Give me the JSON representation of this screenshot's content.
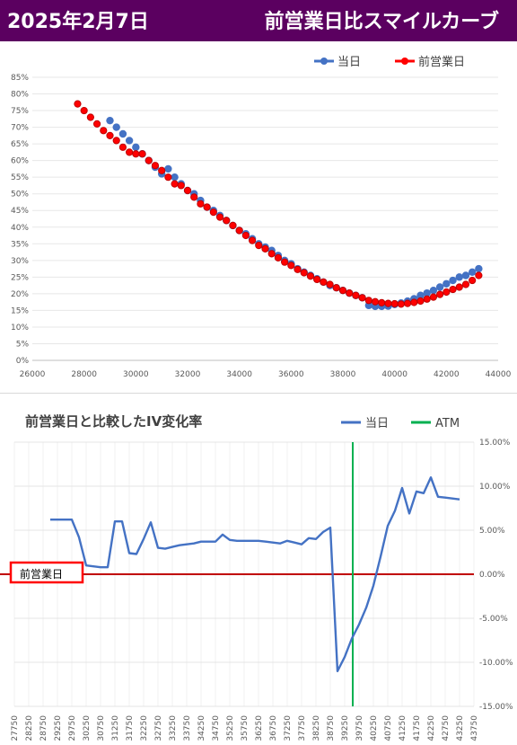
{
  "header": {
    "date": "2025年2月7日",
    "title": "前営業日比スマイルカーブ"
  },
  "colors": {
    "header_bg": "#5b0060",
    "today": "#4472c4",
    "prev": "#ff0000",
    "atm": "#00b050",
    "zero_line": "#c00000"
  },
  "chart_data": [
    {
      "type": "scatter",
      "title": "",
      "legend_position": "top-right",
      "xlim": [
        26000,
        44000
      ],
      "ylim": [
        0,
        85
      ],
      "x_ticks": [
        "26000",
        "28000",
        "30000",
        "32000",
        "34000",
        "36000",
        "38000",
        "40000",
        "42000",
        "44000"
      ],
      "y_ticks": [
        "0%",
        "5%",
        "10%",
        "15%",
        "20%",
        "25%",
        "30%",
        "35%",
        "40%",
        "45%",
        "50%",
        "55%",
        "60%",
        "65%",
        "70%",
        "75%",
        "80%",
        "85%"
      ],
      "series": [
        {
          "name": "当日",
          "color": "#4472c4",
          "x": [
            29000,
            29250,
            29500,
            29750,
            30000,
            30250,
            30500,
            30750,
            31000,
            31250,
            31500,
            31750,
            32000,
            32250,
            32500,
            32750,
            33000,
            33250,
            33500,
            33750,
            34000,
            34250,
            34500,
            34750,
            35000,
            35250,
            35500,
            35750,
            36000,
            36250,
            36500,
            36750,
            37000,
            37250,
            37500,
            37750,
            38000,
            38250,
            38500,
            38750,
            39000,
            39250,
            39500,
            39750,
            40000,
            40250,
            40500,
            40750,
            41000,
            41250,
            41500,
            41750,
            42000,
            42250,
            42500,
            42750,
            43000,
            43250
          ],
          "y": [
            72,
            70,
            68,
            66,
            64,
            62,
            60,
            58,
            56,
            57.5,
            55,
            53,
            51,
            50,
            48,
            46,
            45,
            43.5,
            42,
            40.5,
            39,
            38,
            36.5,
            35,
            34,
            33,
            31.5,
            30,
            29,
            27.5,
            26.5,
            25.5,
            24.5,
            23.5,
            22.5,
            21.8,
            21,
            20.2,
            19.5,
            18.8,
            16.5,
            16.2,
            16.2,
            16.3,
            16.8,
            17.2,
            17.8,
            18.5,
            19.5,
            20.2,
            21,
            22,
            23,
            24,
            25,
            25.5,
            26.5,
            27.5
          ]
        },
        {
          "name": "前営業日",
          "color": "#ff0000",
          "x": [
            27750,
            28000,
            28250,
            28500,
            28750,
            29000,
            29250,
            29500,
            29750,
            30000,
            30250,
            30500,
            30750,
            31000,
            31250,
            31500,
            31750,
            32000,
            32250,
            32500,
            32750,
            33000,
            33250,
            33500,
            33750,
            34000,
            34250,
            34500,
            34750,
            35000,
            35250,
            35500,
            35750,
            36000,
            36250,
            36500,
            36750,
            37000,
            37250,
            37500,
            37750,
            38000,
            38250,
            38500,
            38750,
            39000,
            39250,
            39500,
            39750,
            40000,
            40250,
            40500,
            40750,
            41000,
            41250,
            41500,
            41750,
            42000,
            42250,
            42500,
            42750,
            43000,
            43250
          ],
          "y": [
            77,
            75,
            73,
            71,
            69,
            67.5,
            66,
            64,
            62.5,
            62,
            62,
            60,
            58.5,
            57,
            55,
            53,
            52.5,
            51,
            49,
            47,
            46,
            44.5,
            43,
            42,
            40.5,
            39,
            37.5,
            36,
            34.5,
            33.5,
            32,
            30.8,
            29.5,
            28.5,
            27.3,
            26.3,
            25.3,
            24.3,
            23.5,
            22.8,
            21.8,
            21,
            20.2,
            19.5,
            18.8,
            18,
            17.6,
            17.3,
            17.1,
            17,
            16.9,
            17.1,
            17.4,
            17.8,
            18.4,
            19,
            19.8,
            20.5,
            21.3,
            22,
            22.8,
            24,
            25.5
          ]
        }
      ]
    },
    {
      "type": "line",
      "title": "前営業日と比較したIV変化率",
      "legend_position": "top-right",
      "ylim": [
        -15,
        15
      ],
      "y_ticks": [
        "15.00%",
        "10.00%",
        "5.00%",
        "0.00%",
        "-5.00%",
        "-10.00%",
        "-15.00%"
      ],
      "categories": [
        "27750",
        "28250",
        "28750",
        "29250",
        "29750",
        "30250",
        "30750",
        "31250",
        "31750",
        "32250",
        "32750",
        "33250",
        "33750",
        "34250",
        "34750",
        "35250",
        "35750",
        "36250",
        "36750",
        "37250",
        "37750",
        "38250",
        "38750",
        "39250",
        "39750",
        "40250",
        "40750",
        "41250",
        "41750",
        "42250",
        "42750",
        "43250",
        "43750"
      ],
      "atm_strike": 39250,
      "zero_label": "前営業日",
      "series": [
        {
          "name": "当日",
          "color": "#4472c4",
          "x": [
            29000,
            29250,
            29500,
            29750,
            30000,
            30250,
            30500,
            30750,
            31000,
            31250,
            31500,
            31750,
            32000,
            32250,
            32500,
            32750,
            33000,
            33250,
            33500,
            33750,
            34000,
            34250,
            34500,
            34750,
            35000,
            35250,
            35500,
            35750,
            36000,
            36250,
            36500,
            36750,
            37000,
            37250,
            37500,
            37750,
            38000,
            38250,
            38500,
            38750,
            39000,
            39250,
            39500,
            39750,
            40000,
            40250,
            40500,
            40750,
            41000,
            41250,
            41500,
            41750,
            42000,
            42250,
            42500,
            42750,
            43000,
            43250
          ],
          "y": [
            6.2,
            6.2,
            6.2,
            6.2,
            4.2,
            1.0,
            0.9,
            0.8,
            0.8,
            6.0,
            6.0,
            2.4,
            2.3,
            4.0,
            5.9,
            3.0,
            2.9,
            3.1,
            3.3,
            3.4,
            3.5,
            3.7,
            3.7,
            3.7,
            4.5,
            3.9,
            3.8,
            3.8,
            3.8,
            3.8,
            3.7,
            3.6,
            3.5,
            3.8,
            3.6,
            3.4,
            4.1,
            4.0,
            4.8,
            5.3,
            -11.0,
            -9.4,
            -7.3,
            -5.7,
            -3.8,
            -1.3,
            2.0,
            5.5,
            7.2,
            9.8,
            6.9,
            9.4,
            9.2,
            11.0,
            8.8,
            8.7,
            8.6,
            8.5
          ]
        },
        {
          "name": "ATM",
          "color": "#00b050"
        }
      ]
    }
  ]
}
